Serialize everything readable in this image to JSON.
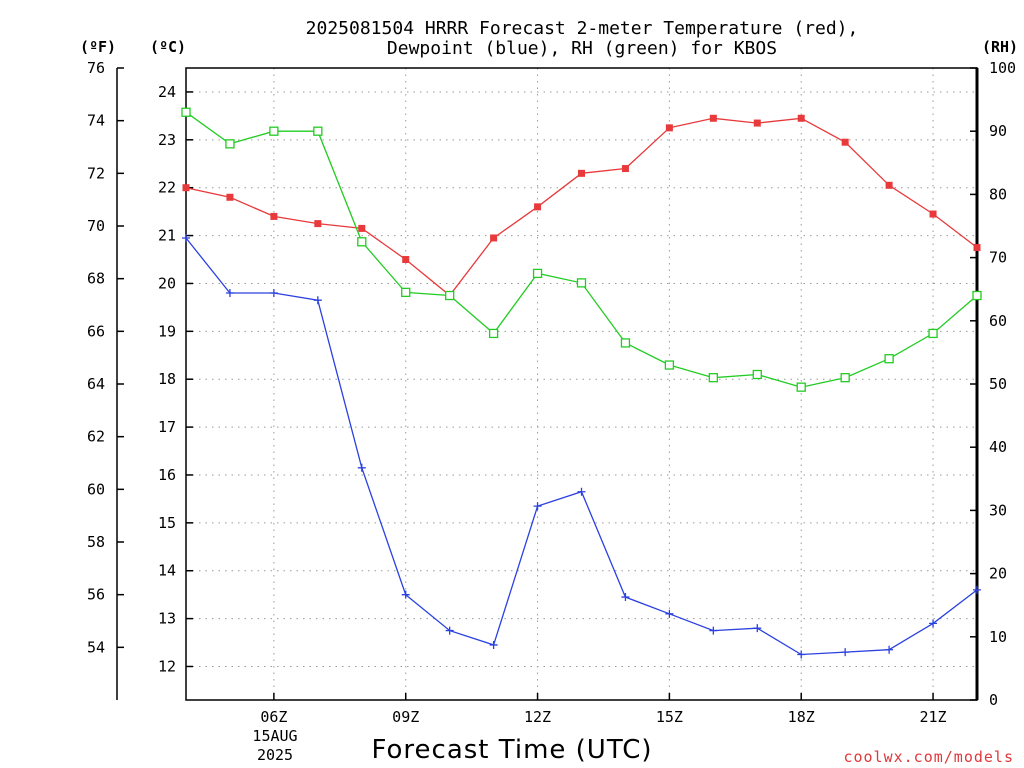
{
  "chart_data": {
    "type": "line",
    "title_line1": "2025081504 HRRR Forecast 2-meter Temperature (red),",
    "title_line2": "Dewpoint (blue), RH (green) for KBOS",
    "xlabel": "Forecast Time (UTC)",
    "date_label_line1": "15AUG",
    "date_label_line2": "2025",
    "credit": "coolwx.com/models",
    "x_hours": [
      4,
      5,
      6,
      7,
      8,
      9,
      10,
      11,
      12,
      13,
      14,
      15,
      16,
      17,
      18,
      19,
      20,
      21,
      22
    ],
    "x_ticks": [
      {
        "hour": 6,
        "label": "06Z"
      },
      {
        "hour": 9,
        "label": "09Z"
      },
      {
        "hour": 12,
        "label": "12Z"
      },
      {
        "hour": 15,
        "label": "15Z"
      },
      {
        "hour": 18,
        "label": "18Z"
      },
      {
        "hour": 21,
        "label": "21Z"
      }
    ],
    "xlim": [
      4,
      22
    ],
    "axes": {
      "fahrenheit": {
        "unit_label": "(ºF)",
        "range": [
          52,
          76
        ],
        "ticks": [
          54,
          56,
          58,
          60,
          62,
          64,
          66,
          68,
          70,
          72,
          74,
          76
        ]
      },
      "celsius": {
        "unit_label": "(ºC)",
        "range": [
          11.3,
          24.5
        ],
        "ticks": [
          12,
          13,
          14,
          15,
          16,
          17,
          18,
          19,
          20,
          21,
          22,
          23,
          24
        ]
      },
      "rh": {
        "unit_label": "(RH)",
        "range": [
          0,
          100
        ],
        "ticks": [
          0,
          10,
          20,
          30,
          40,
          50,
          60,
          70,
          80,
          90,
          100
        ]
      }
    },
    "grid": true,
    "series": [
      {
        "name": "Temperature",
        "axis": "celsius",
        "color": "#e8393b",
        "marker": "filled-square",
        "values": [
          22.0,
          21.8,
          21.4,
          21.25,
          21.15,
          20.5,
          19.75,
          20.95,
          21.6,
          22.3,
          22.4,
          23.25,
          23.45,
          23.35,
          23.45,
          22.95,
          22.05,
          21.45,
          20.75
        ]
      },
      {
        "name": "Dewpoint",
        "axis": "celsius",
        "color": "#2b41e0",
        "marker": "plus",
        "values": [
          20.95,
          19.8,
          19.8,
          19.65,
          16.15,
          13.5,
          12.75,
          12.45,
          15.35,
          15.65,
          13.45,
          13.1,
          12.75,
          12.8,
          12.25,
          12.3,
          12.35,
          12.9,
          13.6
        ]
      },
      {
        "name": "RH",
        "axis": "rh",
        "color": "#22cc22",
        "marker": "open-square",
        "values": [
          93,
          88,
          90,
          90,
          72.5,
          64.5,
          64,
          58,
          67.5,
          66,
          56.5,
          53,
          51,
          51.5,
          49.5,
          51,
          54,
          58,
          64
        ]
      }
    ]
  }
}
